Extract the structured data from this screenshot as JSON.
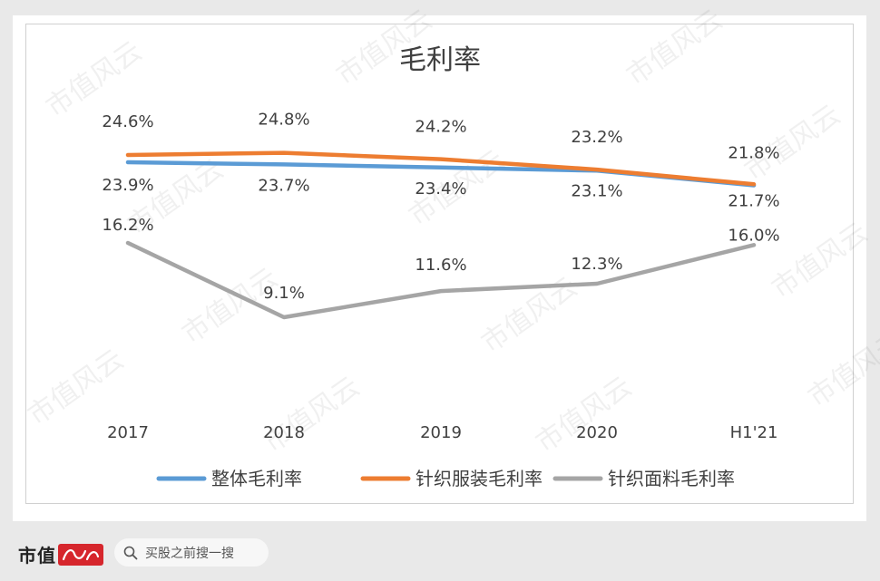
{
  "chart_data": {
    "type": "line",
    "title": "毛利率",
    "categories": [
      "2017",
      "2018",
      "2019",
      "2020",
      "H1'21"
    ],
    "series": [
      {
        "name": "整体毛利率",
        "values": [
          23.9,
          23.7,
          23.4,
          23.1,
          21.7
        ],
        "labels": [
          "23.9%",
          "23.7%",
          "23.4%",
          "23.1%",
          "21.7%"
        ],
        "color": "#5b9bd5"
      },
      {
        "name": "针织服装毛利率",
        "values": [
          24.6,
          24.8,
          24.2,
          23.2,
          21.8
        ],
        "labels": [
          "24.6%",
          "24.8%",
          "24.2%",
          "23.2%",
          "21.8%"
        ],
        "color": "#ed7d31"
      },
      {
        "name": "针织面料毛利率",
        "values": [
          16.2,
          9.1,
          11.6,
          12.3,
          16.0
        ],
        "labels": [
          "16.2%",
          "9.1%",
          "11.6%",
          "12.3%",
          "16.0%"
        ],
        "color": "#a5a5a5"
      }
    ],
    "legend_position": "bottom",
    "grid": false
  },
  "watermark_text": "市值风云",
  "footer": {
    "brand": "市值",
    "brand_logo": "风云",
    "search_placeholder": "买股之前搜一搜",
    "search_icon": "search-icon"
  }
}
